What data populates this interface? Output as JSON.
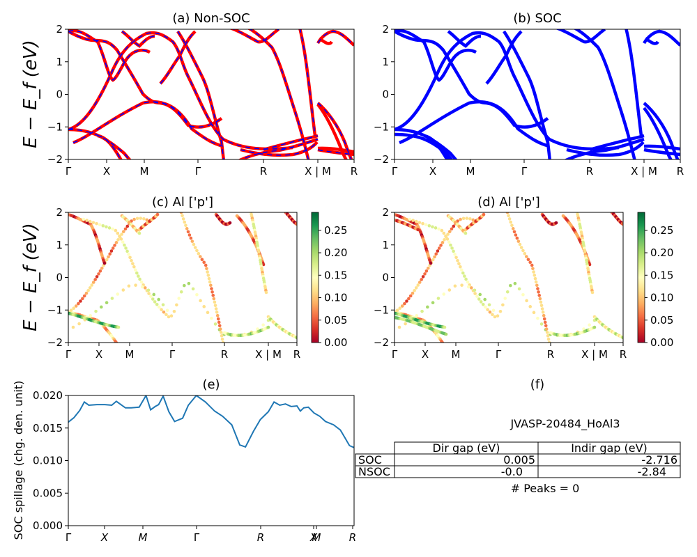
{
  "panels": {
    "a": {
      "title": "(a) Non-SOC"
    },
    "b": {
      "title": "(b) SOC"
    },
    "c": {
      "title": "(c)  Al ['p']"
    },
    "d": {
      "title": "(d) Al ['p']"
    },
    "e": {
      "title": "(e)"
    },
    "f": {
      "title": "(f)"
    }
  },
  "band_ylabel": "E − E_f (eV)",
  "spill_ylabel": "SOC spillage (chg. den. unit)",
  "kpath_labels": [
    "Γ",
    "X",
    "M",
    "Γ",
    "R",
    "X | M",
    "R"
  ],
  "kpath_labels_e": [
    "Γ",
    "X",
    "M",
    "Γ",
    "R",
    "X",
    "M",
    "R"
  ],
  "band_yticks": [
    "2",
    "1",
    "0",
    "−1",
    "−2"
  ],
  "colorbar_ticks": [
    "0.25",
    "0.20",
    "0.15",
    "0.10",
    "0.05",
    "0.00"
  ],
  "colors": {
    "nonsoc_band": "#ff0000",
    "soc_band": "#0000ff",
    "spillage_line": "#1f77b4",
    "colormap": [
      "#a50026",
      "#d73027",
      "#f46d43",
      "#fdae61",
      "#fee08b",
      "#ffffbf",
      "#d9ef8b",
      "#a6d96a",
      "#66bd63",
      "#1a9850",
      "#006837"
    ]
  },
  "info": {
    "material": "JVASP-20484_HoAl3",
    "peaks": "# Peaks = 0",
    "table": {
      "headers": [
        "",
        "Dir gap (eV)",
        "Indir gap (eV)"
      ],
      "rows": [
        [
          "SOC",
          "0.005",
          "-2.716"
        ],
        [
          "NSOC",
          "-0.0",
          "-2.84"
        ]
      ]
    }
  },
  "chart_data": [
    {
      "type": "line",
      "title": "(a) Non-SOC",
      "ylabel": "E − E_f (eV)",
      "ylim": [
        -2,
        2
      ],
      "x_ticks": [
        "Γ",
        "X",
        "M",
        "Γ",
        "R",
        "X | M",
        "R"
      ]
    },
    {
      "type": "line",
      "title": "(b) SOC",
      "ylim": [
        -2,
        2
      ],
      "x_ticks": [
        "Γ",
        "X",
        "M",
        "Γ",
        "R",
        "X | M",
        "R"
      ]
    },
    {
      "type": "scatter",
      "title": "(c)  Al ['p']",
      "ylabel": "E − E_f (eV)",
      "ylim": [
        -2,
        2
      ],
      "colorbar_range": [
        0.0,
        0.29
      ]
    },
    {
      "type": "scatter",
      "title": "(d) Al ['p']",
      "ylim": [
        -2,
        2
      ],
      "colorbar_range": [
        0.0,
        0.29
      ]
    },
    {
      "type": "line",
      "title": "(e)",
      "ylabel": "SOC spillage (chg. den. unit)",
      "ylim": [
        0.0,
        0.02
      ],
      "yticks": [
        "0.000",
        "0.005",
        "0.010",
        "0.015",
        "0.020"
      ],
      "x": [
        0,
        0.05,
        0.1,
        0.14,
        0.18,
        0.25,
        0.32,
        0.38,
        0.42,
        0.5,
        0.55,
        0.62,
        0.68,
        0.72,
        0.76,
        0.79,
        0.83,
        0.88,
        0.93,
        1.0,
        1.05,
        1.12,
        1.2,
        1.28,
        1.35,
        1.43,
        1.5,
        1.55,
        1.62,
        1.68,
        1.75,
        1.8,
        1.85,
        1.9,
        1.95,
        2.0,
        2.03,
        2.06,
        2.1,
        2.15,
        2.2,
        2.25,
        2.32,
        2.38,
        2.42,
        2.46,
        2.5
      ],
      "values": [
        0.0159,
        0.0166,
        0.0177,
        0.019,
        0.0185,
        0.0186,
        0.0186,
        0.0185,
        0.0191,
        0.0181,
        0.0181,
        0.0182,
        0.02,
        0.0178,
        0.0183,
        0.0186,
        0.0199,
        0.0175,
        0.016,
        0.0165,
        0.0185,
        0.02,
        0.019,
        0.0176,
        0.0168,
        0.0155,
        0.0124,
        0.0121,
        0.0145,
        0.0163,
        0.0175,
        0.019,
        0.0185,
        0.0187,
        0.0183,
        0.0184,
        0.0176,
        0.0181,
        0.0182,
        0.0173,
        0.0168,
        0.016,
        0.0155,
        0.0147,
        0.0135,
        0.0123,
        0.012
      ],
      "x_ticks": [
        "Γ",
        "X",
        "M",
        "Γ",
        "R",
        "X",
        "M",
        "R"
      ]
    },
    {
      "type": "table",
      "title": "(f)"
    }
  ]
}
